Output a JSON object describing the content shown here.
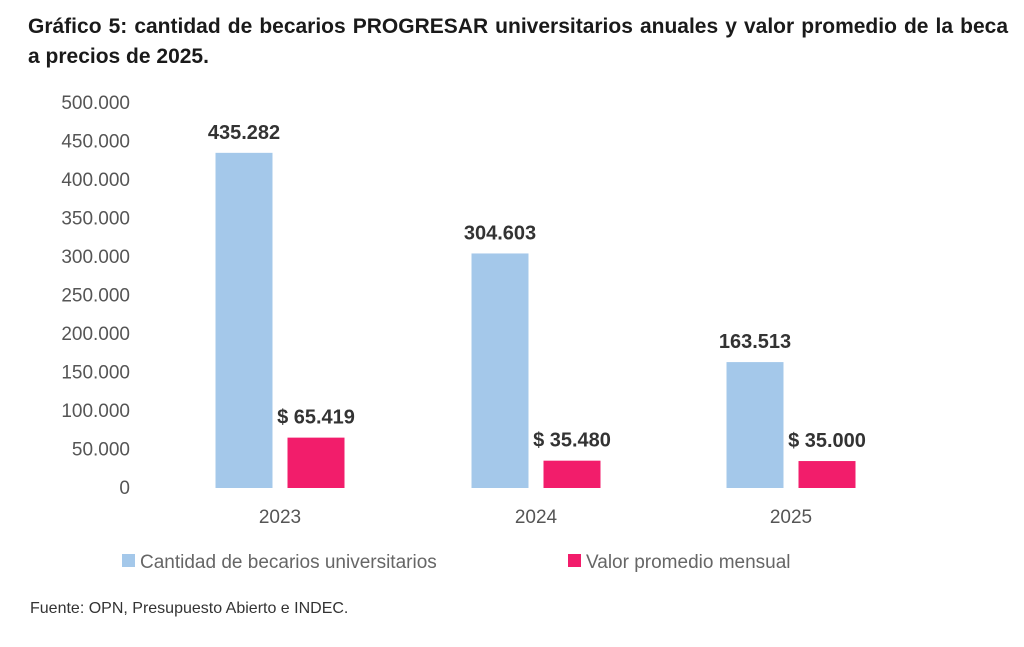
{
  "title": "Gráfico 5: cantidad de becarios PROGRESAR universitarios anuales y valor promedio de la beca  a precios de 2025.",
  "source": "Fuente: OPN, Presupuesto Abierto e INDEC.",
  "chart_data": {
    "type": "bar",
    "title": "Gráfico 5: cantidad de becarios PROGRESAR universitarios anuales y valor promedio de la beca  a precios de 2025.",
    "categories": [
      "2023",
      "2024",
      "2025"
    ],
    "series": [
      {
        "name": "Cantidad de becarios universitarios",
        "values": [
          435282,
          304603,
          163513
        ],
        "labels": [
          "435.282",
          "304.603",
          "163.513"
        ],
        "color": "#a4c8ea"
      },
      {
        "name": "Valor promedio mensual",
        "values": [
          65419,
          35480,
          35000
        ],
        "labels": [
          "$ 65.419",
          "$ 35.480",
          "$ 35.000"
        ],
        "color": "#f21d6b"
      }
    ],
    "ylim": [
      0,
      500000
    ],
    "yticks": [
      0,
      50000,
      100000,
      150000,
      200000,
      250000,
      300000,
      350000,
      400000,
      450000,
      500000
    ],
    "ytick_labels": [
      "0",
      "50.000",
      "100.000",
      "150.000",
      "200.000",
      "250.000",
      "300.000",
      "350.000",
      "400.000",
      "450.000",
      "500.000"
    ],
    "xlabel": "",
    "ylabel": "",
    "grid": false,
    "legend_position": "bottom"
  }
}
